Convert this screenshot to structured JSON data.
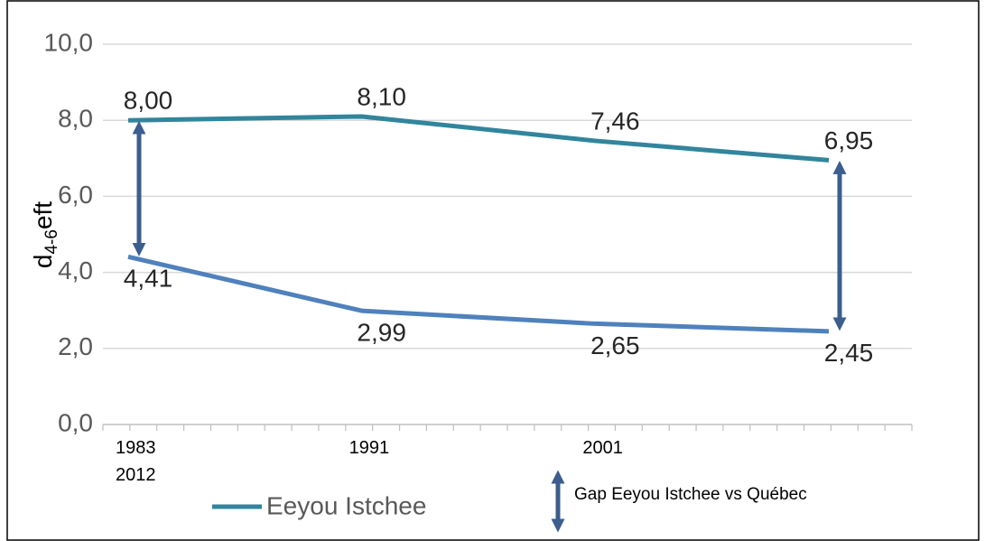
{
  "chart_data": {
    "type": "line",
    "categories": [
      "1983\n2012",
      "1991",
      "2001",
      null
    ],
    "series": [
      {
        "name": "Eeyou Istchee",
        "color": "#31859c",
        "values": [
          8.0,
          8.1,
          7.46,
          6.95
        ],
        "value_labels": [
          "8,00",
          "8,10",
          "7,46",
          "6,95"
        ]
      },
      {
        "color": "#4f81bd",
        "values": [
          4.41,
          2.99,
          2.65,
          2.45
        ],
        "value_labels": [
          "4,41",
          "2,99",
          "2,65",
          "2,45"
        ]
      }
    ],
    "gap": {
      "name": "Gap Eeyou Istchee vs Québec",
      "color": "#3b5e8e"
    },
    "y_label": [
      "d",
      "4-6",
      "eft"
    ],
    "ylim": [
      0,
      10
    ],
    "yticks": [
      {
        "value": 0,
        "label": "0,0"
      },
      {
        "value": 2,
        "label": "2,0"
      },
      {
        "value": 4,
        "label": "4,0"
      },
      {
        "value": 6,
        "label": "6,0"
      },
      {
        "value": 8,
        "label": "8,0"
      },
      {
        "value": 10,
        "label": "10,0"
      }
    ],
    "grid": true
  }
}
